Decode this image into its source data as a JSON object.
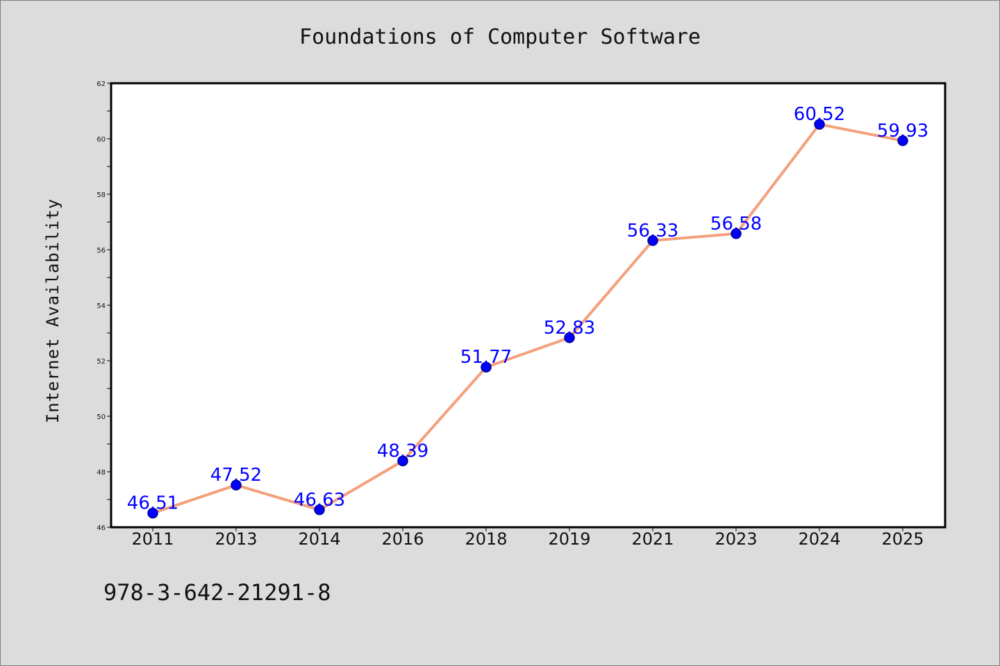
{
  "chart_data": {
    "type": "line",
    "title": "Foundations of Computer Software",
    "xlabel": "",
    "ylabel": "Internet Availability",
    "categories": [
      "2011",
      "2013",
      "2014",
      "2016",
      "2018",
      "2019",
      "2021",
      "2023",
      "2024",
      "2025"
    ],
    "series": [
      {
        "values": [
          46.51,
          47.52,
          46.63,
          48.39,
          51.77,
          52.83,
          56.33,
          56.58,
          60.52,
          59.93
        ],
        "labels": [
          "46.51",
          "47.52",
          "46.63",
          "48.39",
          "51.77",
          "52.83",
          "56.33",
          "56.58",
          "60.52",
          "59.93"
        ]
      }
    ],
    "ylim": [
      46,
      62
    ],
    "yticks": [
      "46",
      "48",
      "50",
      "52",
      "54",
      "56",
      "58",
      "60",
      "62"
    ],
    "grid": false,
    "colors": {
      "line": "#f4a07c",
      "marker": "#0000ff",
      "marker_edge": "#00008b",
      "data_label": "#0000ff",
      "plot_background": "#ffffff",
      "figure_background": "#dcdcdc"
    }
  },
  "annotation": "978-3-642-21291-8"
}
